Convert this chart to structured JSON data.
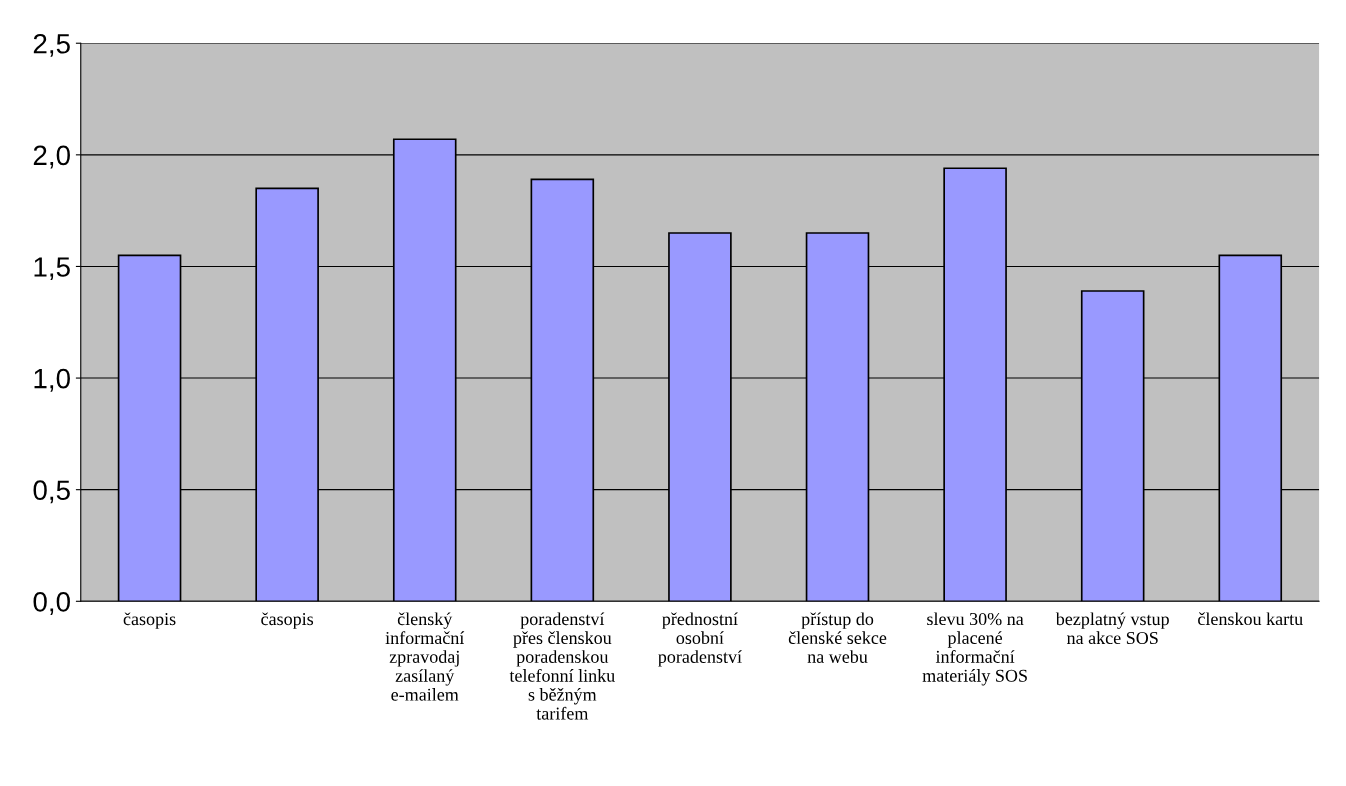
{
  "chart_data": {
    "type": "bar",
    "categories": [
      "časopis",
      "časopis",
      "členský informační zpravodaj zasílaný e-mailem",
      "poradenství přes členskou poradenskou telefonní linku s běžným tarifem",
      "přednostní osobní poradenství",
      "přístup do členské sekce na webu",
      "slevu 30% na placené informační materiály SOS",
      "bezplatný vstup na akce SOS",
      "členskou kartu"
    ],
    "values": [
      1.55,
      1.85,
      2.07,
      1.89,
      1.65,
      1.65,
      1.94,
      1.39,
      1.55
    ],
    "color": "#9999ff",
    "ylim": [
      0,
      2.5
    ],
    "yticks": [
      {
        "value": 0,
        "label": "0,0"
      },
      {
        "value": 0.5,
        "label": "0,5"
      },
      {
        "value": 1.0,
        "label": "1,0"
      },
      {
        "value": 1.5,
        "label": "1,5"
      },
      {
        "value": 2.0,
        "label": "2,0"
      },
      {
        "value": 2.5,
        "label": "2,5"
      }
    ],
    "grid": "y",
    "legend": false
  }
}
